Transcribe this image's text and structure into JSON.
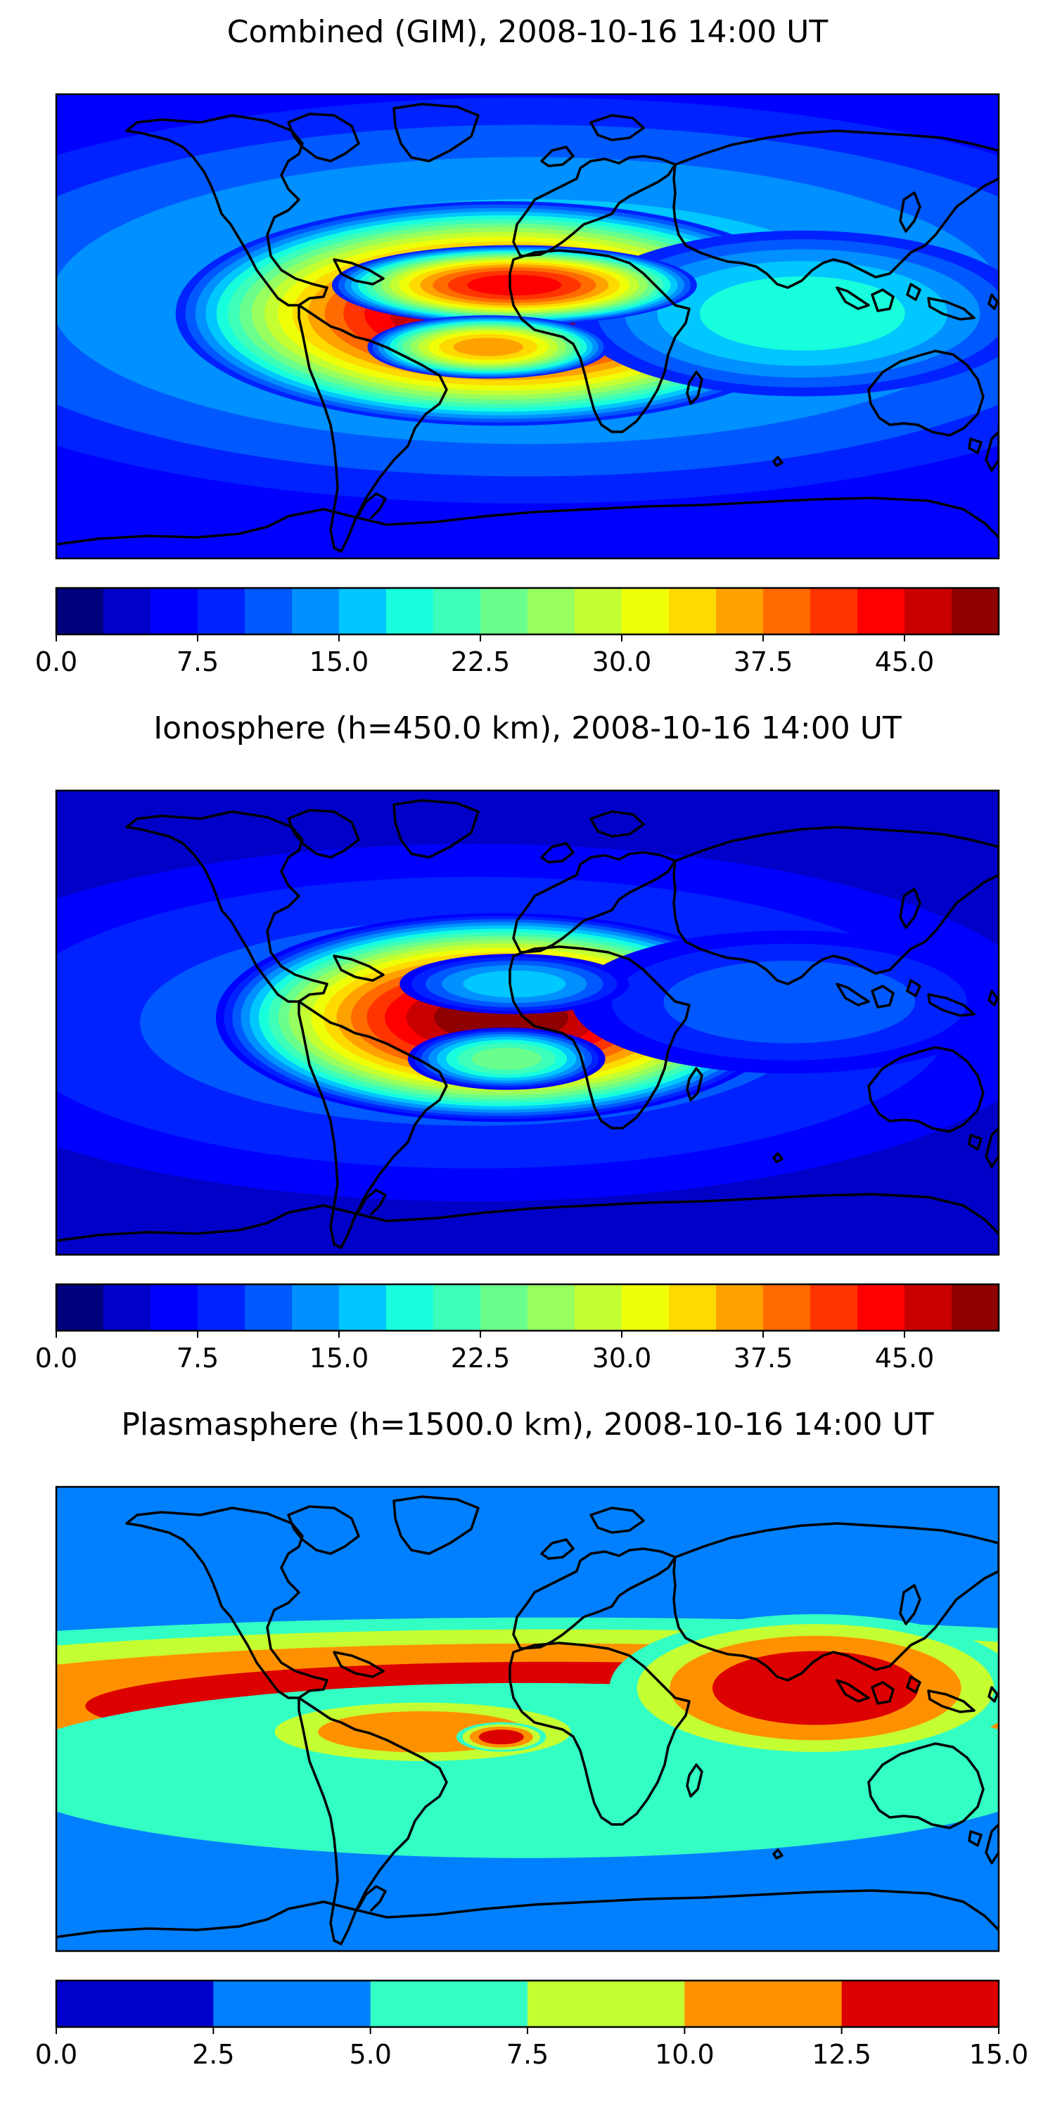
{
  "chart_data": [
    {
      "type": "heatmap",
      "title": "Combined (GIM), 2008-10-16 14:00 UT",
      "colorbar": {
        "range": [
          0,
          50
        ],
        "ticks": [
          "0.0",
          "7.5",
          "15.0",
          "22.5",
          "30.0",
          "37.5",
          "45.0"
        ],
        "tick_values": [
          0,
          7.5,
          15,
          22.5,
          30,
          37.5,
          45
        ],
        "levels": 20,
        "colors": [
          "#00007f",
          "#0000c8",
          "#0000ff",
          "#0022ff",
          "#0059ff",
          "#0090ff",
          "#00c7ff",
          "#18ffdd",
          "#3dffb9",
          "#6aff8c",
          "#97ff5f",
          "#c4ff32",
          "#eeff08",
          "#ffda00",
          "#ffa200",
          "#ff6b00",
          "#ff3400",
          "#ff0000",
          "#c90000",
          "#8f0000"
        ]
      },
      "background_level": 2,
      "blobs": [
        {
          "lon": -10,
          "lat": 5,
          "sx": 80,
          "sy": 28,
          "value": 24
        },
        {
          "lon": -5,
          "lat": 16,
          "sx": 45,
          "sy": 10,
          "value": 15
        },
        {
          "lon": -15,
          "lat": -8,
          "sx": 30,
          "sy": 8,
          "value": 12
        },
        {
          "lon": 105,
          "lat": 5,
          "sx": 60,
          "sy": 22,
          "value": 5
        },
        {
          "lon": 0,
          "lat": 10,
          "sx": 180,
          "sy": 55,
          "value": 4
        }
      ]
    },
    {
      "type": "heatmap",
      "title": "Ionosphere  (h=450.0 km), 2008-10-16 14:00 UT",
      "colorbar": {
        "range": [
          0,
          50
        ],
        "ticks": [
          "0.0",
          "7.5",
          "15.0",
          "22.5",
          "30.0",
          "37.5",
          "45.0"
        ],
        "tick_values": [
          0,
          7.5,
          15,
          22.5,
          30,
          37.5,
          45
        ],
        "levels": 20,
        "colors": [
          "#00007f",
          "#0000c8",
          "#0000ff",
          "#0022ff",
          "#0059ff",
          "#0090ff",
          "#00c7ff",
          "#18ffdd",
          "#3dffb9",
          "#6aff8c",
          "#97ff5f",
          "#c4ff32",
          "#eeff08",
          "#ffda00",
          "#ffa200",
          "#ff6b00",
          "#ff3400",
          "#ff0000",
          "#c90000",
          "#8f0000"
        ]
      },
      "background_level": 1,
      "blobs": [
        {
          "lon": -10,
          "lat": 2,
          "sx": 70,
          "sy": 26,
          "value": 22
        },
        {
          "lon": -8,
          "lat": -14,
          "sx": 25,
          "sy": 8,
          "value": 8
        },
        {
          "lon": -5,
          "lat": 15,
          "sx": 30,
          "sy": 8,
          "value": 5
        },
        {
          "lon": 100,
          "lat": 8,
          "sx": 60,
          "sy": 20,
          "value": 3
        },
        {
          "lon": -20,
          "lat": 0,
          "sx": 160,
          "sy": 50,
          "value": 3
        }
      ]
    },
    {
      "type": "heatmap",
      "title": "Plasmasphere (h=1500.0 km), 2008-10-16 14:00 UT",
      "colorbar": {
        "range": [
          0,
          15
        ],
        "ticks": [
          "0.0",
          "2.5",
          "5.0",
          "7.5",
          "10.0",
          "12.5",
          "15.0"
        ],
        "tick_values": [
          0,
          2.5,
          5,
          7.5,
          10,
          12.5,
          15
        ],
        "levels": 6,
        "colors": [
          "#0000cd",
          "#0080ff",
          "#33ffc4",
          "#c4ff32",
          "#ff9100",
          "#dc0000"
        ]
      },
      "background_level": 1.2,
      "blobs": [
        {
          "lon": 10,
          "lat": 5,
          "sx": 250,
          "sy": 24,
          "value": 5.5
        },
        {
          "lon": 110,
          "lat": 12,
          "sx": 55,
          "sy": 20,
          "value": 4.5
        },
        {
          "lon": -40,
          "lat": -5,
          "sx": 50,
          "sy": 10,
          "value": 3.5
        },
        {
          "lon": -10,
          "lat": -7,
          "sx": 12,
          "sy": 4,
          "value": 3.8
        },
        {
          "lon": 0,
          "lat": -20,
          "sx": 180,
          "sy": 30,
          "value": 1.5
        }
      ]
    }
  ]
}
